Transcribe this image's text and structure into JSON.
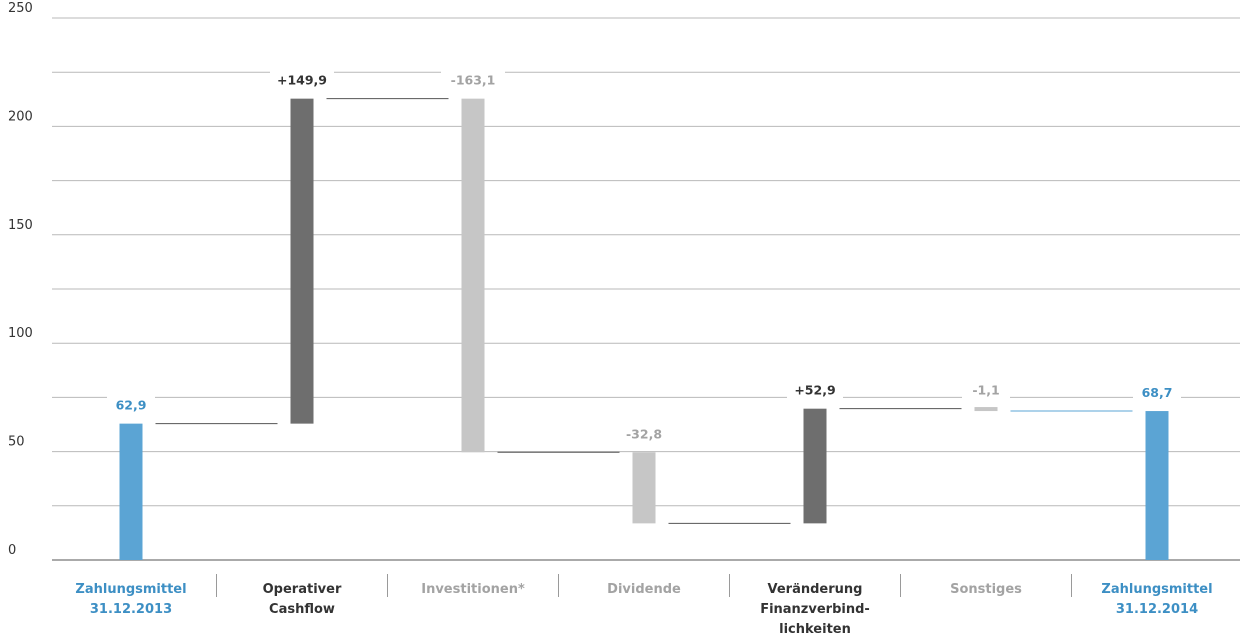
{
  "chart_data": {
    "type": "bar",
    "subtype": "waterfall",
    "title": "",
    "xlabel": "",
    "ylabel": "",
    "ylim": [
      0,
      250
    ],
    "yticks": [
      0,
      50,
      100,
      150,
      200,
      250
    ],
    "grid": true,
    "categories": [
      [
        "Zahlungsmittel",
        "31.12.2013"
      ],
      [
        "Operativer",
        "Cashflow"
      ],
      [
        "Investitionen*"
      ],
      [
        "Dividende"
      ],
      [
        "Veränderung",
        "Finanzverbind-",
        "lichkeiten"
      ],
      [
        "Sonstiges"
      ],
      [
        "Zahlungsmittel",
        "31.12.2014"
      ]
    ],
    "bars": [
      {
        "kind": "total",
        "start": 0,
        "end": 62.9,
        "label": "62,9",
        "color": "#5ba4d4",
        "label_color": "#3d8fc4",
        "category_color": "#3d8fc4"
      },
      {
        "kind": "increase",
        "start": 62.9,
        "end": 212.8,
        "label": "+149,9",
        "color": "#6e6e6e",
        "label_color": "#333333",
        "category_color": "#333333"
      },
      {
        "kind": "decrease",
        "start": 212.8,
        "end": 49.7,
        "label": "-163,1",
        "color": "#c6c6c6",
        "label_color": "#a3a3a3",
        "category_color": "#a3a3a3"
      },
      {
        "kind": "decrease",
        "start": 49.7,
        "end": 16.9,
        "label": "-32,8",
        "color": "#c6c6c6",
        "label_color": "#a3a3a3",
        "category_color": "#a3a3a3"
      },
      {
        "kind": "increase",
        "start": 16.9,
        "end": 69.8,
        "label": "+52,9",
        "color": "#6e6e6e",
        "label_color": "#333333",
        "category_color": "#333333"
      },
      {
        "kind": "decrease",
        "start": 69.8,
        "end": 68.7,
        "label": "-1,1",
        "color": "#c6c6c6",
        "label_color": "#a3a3a3",
        "category_color": "#a3a3a3"
      },
      {
        "kind": "total",
        "start": 0,
        "end": 68.7,
        "label": "68,7",
        "color": "#5ba4d4",
        "label_color": "#3d8fc4",
        "category_color": "#3d8fc4"
      }
    ]
  }
}
